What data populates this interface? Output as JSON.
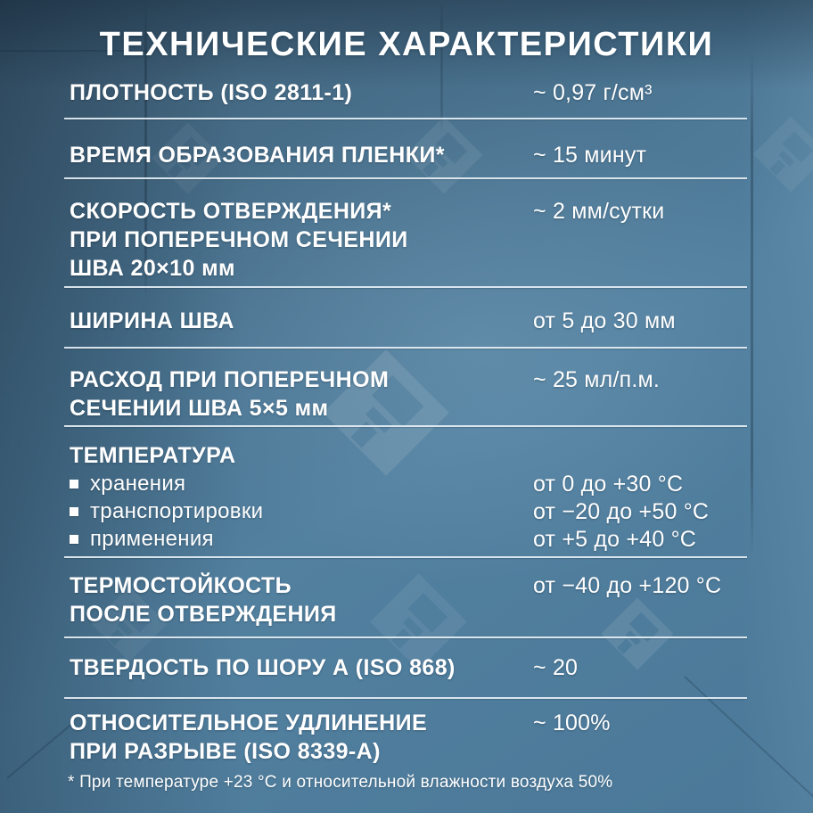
{
  "title": "ТЕХНИЧЕСКИЕ ХАРАКТЕРИСТИКИ",
  "colors": {
    "background_base": "#4d7a9a",
    "background_dark_corner": "#3f5d74",
    "text": "#ffffff",
    "divider": "#e4eef4"
  },
  "watermark_icon": "paint-brush-house-logo",
  "rows": [
    {
      "label_lines": [
        "ПЛОТНОСТЬ (ISO 2811-1)"
      ],
      "value": "~ 0,97 г/см³"
    },
    {
      "label_lines": [
        "ВРЕМЯ ОБРАЗОВАНИЯ ПЛЕНКИ*"
      ],
      "value": "~ 15 минут"
    },
    {
      "label_lines": [
        "СКОРОСТЬ ОТВЕРЖДЕНИЯ*",
        "ПРИ ПОПЕРЕЧНОМ СЕЧЕНИИ",
        "ШВА 20×10 мм"
      ],
      "value": "~ 2 мм/сутки"
    },
    {
      "label_lines": [
        "ШИРИНА ШВА"
      ],
      "value": "от 5 до 30 мм"
    },
    {
      "label_lines": [
        "РАСХОД ПРИ ПОПЕРЕЧНОМ",
        "СЕЧЕНИИ ШВА 5×5 мм"
      ],
      "value": "~ 25 мл/п.м."
    },
    {
      "label_lines": [
        "ТЕМПЕРАТУРА"
      ],
      "subitems": [
        {
          "label": "хранения",
          "value": "от 0 до +30 °C"
        },
        {
          "label": "транспортировки",
          "value": "от −20 до +50 °C"
        },
        {
          "label": "применения",
          "value": "от +5 до +40 °C"
        }
      ]
    },
    {
      "label_lines": [
        "ТЕРМОСТОЙКОСТЬ",
        "ПОСЛЕ ОТВЕРЖДЕНИЯ"
      ],
      "value": "от −40 до +120 °C"
    },
    {
      "label_lines": [
        "ТВЕРДОСТЬ ПО ШОРУ А (ISO 868)"
      ],
      "value": "~ 20"
    },
    {
      "label_lines": [
        "ОТНОСИТЕЛЬНОЕ УДЛИНЕНИЕ",
        "ПРИ РАЗРЫВЕ (ISO 8339-A)"
      ],
      "value": "~ 100%"
    }
  ],
  "footnote": "* При температуре +23 °C и относительной влажности воздуха 50%"
}
